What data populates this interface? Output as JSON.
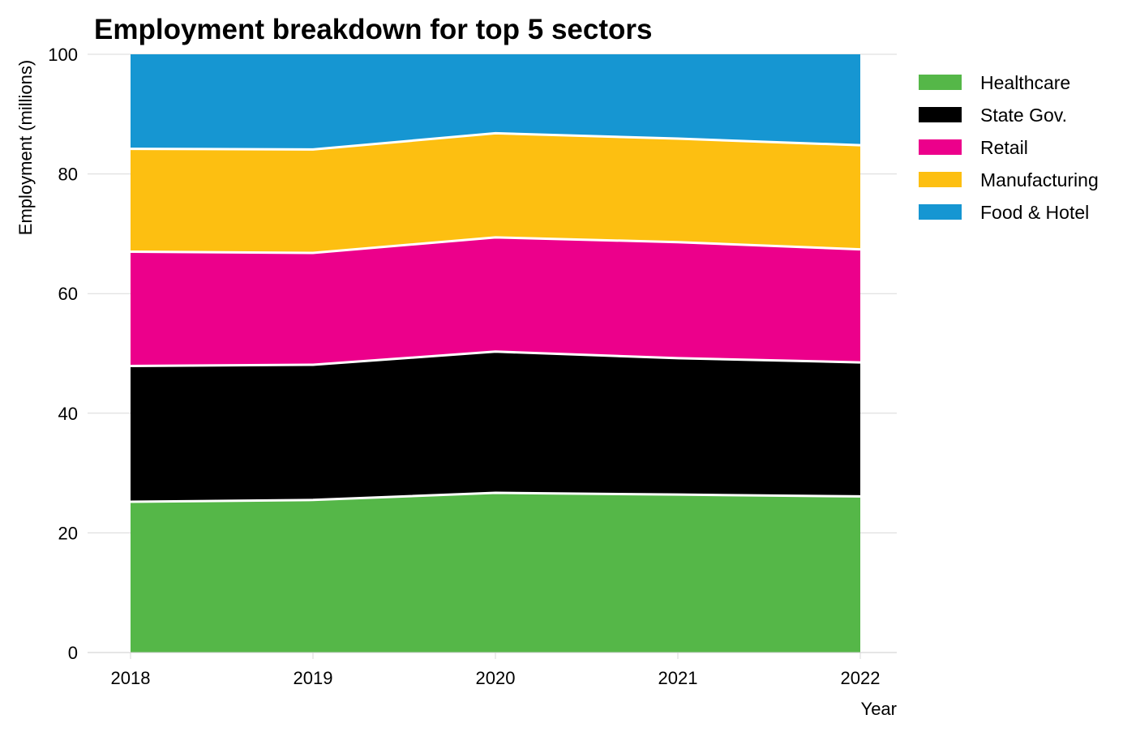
{
  "chart_data": {
    "type": "area",
    "stacked": true,
    "title": "Employment breakdown for top 5 sectors",
    "xlabel": "Year",
    "ylabel": "Employment (millions)",
    "x": [
      2018,
      2019,
      2020,
      2021,
      2022
    ],
    "x_tick_labels": [
      "2018",
      "2019",
      "2020",
      "2021",
      "2022"
    ],
    "ylim": [
      0,
      100
    ],
    "y_ticks": [
      0,
      20,
      40,
      60,
      80,
      100
    ],
    "y_tick_labels": [
      "0",
      "20",
      "40",
      "60",
      "80",
      "100"
    ],
    "grid": "horizontal",
    "legend_position": "top-right (outside plot)",
    "series": [
      {
        "name": "Healthcare",
        "color": "#55b748",
        "values": [
          25.2,
          25.5,
          26.7,
          26.4,
          26.1
        ]
      },
      {
        "name": "State Gov.",
        "color": "#000000",
        "values": [
          22.7,
          22.6,
          23.6,
          22.8,
          22.4
        ]
      },
      {
        "name": "Retail",
        "color": "#ec008b",
        "values": [
          19.1,
          18.7,
          19.1,
          19.4,
          18.9
        ]
      },
      {
        "name": "Manufacturing",
        "color": "#fdbf11",
        "values": [
          17.2,
          17.3,
          17.4,
          17.3,
          17.4
        ]
      },
      {
        "name": "Food & Hotel",
        "color": "#1696d2",
        "values": [
          15.8,
          15.9,
          13.2,
          14.1,
          15.2
        ]
      }
    ]
  }
}
